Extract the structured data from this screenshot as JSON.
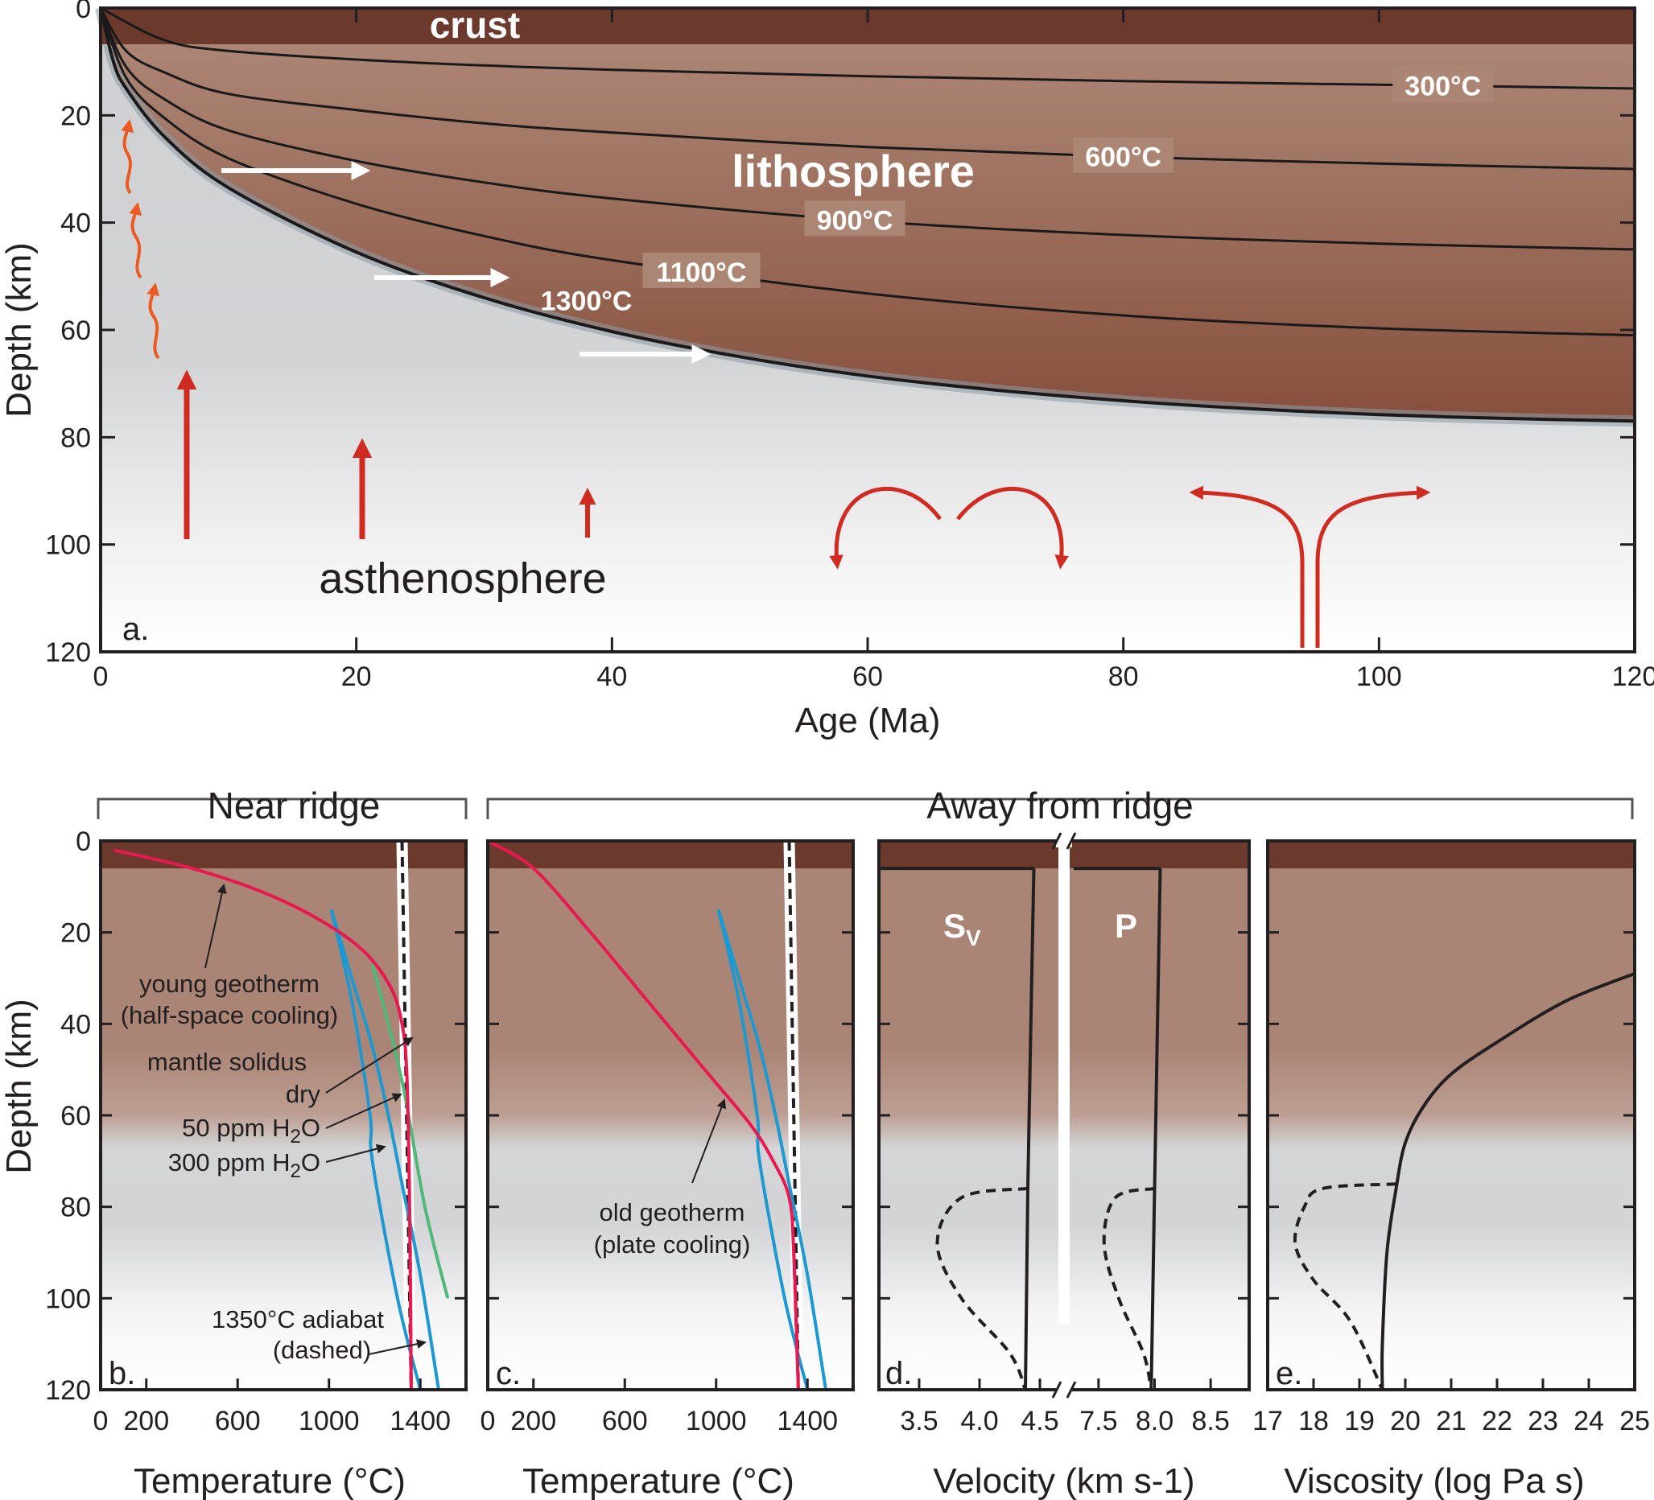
{
  "chart_data": [
    {
      "panel": "a",
      "type": "line",
      "xlabel": "Age (Ma)",
      "ylabel": "Depth (km)",
      "xlim": [
        0,
        120
      ],
      "ylim": [
        120,
        0
      ],
      "xticks": [
        "0",
        "20",
        "40",
        "60",
        "80",
        "100",
        "120"
      ],
      "yticks": [
        "0",
        "20",
        "40",
        "60",
        "80",
        "100",
        "120"
      ],
      "regions": {
        "crust": "crust",
        "lithosphere": "lithosphere",
        "asthenosphere": "asthenosphere"
      },
      "crust_base_km": 6,
      "isotherms": [
        {
          "label": "300°C",
          "plate_depth": 15,
          "points": [
            [
              0,
              0
            ],
            [
              5,
              6
            ],
            [
              10,
              8
            ],
            [
              20,
              9.6
            ],
            [
              30,
              10.7
            ],
            [
              40,
              11.5
            ],
            [
              60,
              12.7
            ],
            [
              80,
              13.6
            ],
            [
              100,
              14.3
            ],
            [
              120,
              15
            ]
          ]
        },
        {
          "label": "600°C",
          "plate_depth": 30,
          "points": [
            [
              0,
              0
            ],
            [
              2,
              8
            ],
            [
              5,
              12
            ],
            [
              10,
              16
            ],
            [
              20,
              19
            ],
            [
              30,
              21.5
            ],
            [
              40,
              23.2
            ],
            [
              60,
              25.9
            ],
            [
              80,
              27.7
            ],
            [
              100,
              29
            ],
            [
              120,
              30
            ]
          ]
        },
        {
          "label": "900°C",
          "plate_depth": 45,
          "points": [
            [
              0,
              0
            ],
            [
              2,
              11
            ],
            [
              5,
              17
            ],
            [
              10,
              22.8
            ],
            [
              20,
              28.5
            ],
            [
              30,
              32.5
            ],
            [
              40,
              35.5
            ],
            [
              60,
              39.7
            ],
            [
              80,
              42.3
            ],
            [
              100,
              43.9
            ],
            [
              120,
              45
            ]
          ]
        },
        {
          "label": "1100°C",
          "plate_depth": 61,
          "points": [
            [
              0,
              0
            ],
            [
              2,
              13
            ],
            [
              5,
              20.5
            ],
            [
              10,
              28
            ],
            [
              20,
              36.5
            ],
            [
              30,
              42.5
            ],
            [
              40,
              47
            ],
            [
              60,
              53.2
            ],
            [
              80,
              57.3
            ],
            [
              100,
              59.7
            ],
            [
              120,
              61
            ]
          ]
        },
        {
          "label": "1300°C",
          "plate_depth": 77,
          "points": [
            [
              0,
              0
            ],
            [
              1,
              10
            ],
            [
              2,
              15
            ],
            [
              5,
              24
            ],
            [
              10,
              33.5
            ],
            [
              20,
              45.5
            ],
            [
              30,
              54
            ],
            [
              40,
              60.3
            ],
            [
              50,
              65
            ],
            [
              60,
              68.6
            ],
            [
              70,
              71.2
            ],
            [
              80,
              73.2
            ],
            [
              90,
              74.7
            ],
            [
              100,
              75.8
            ],
            [
              110,
              76.5
            ],
            [
              120,
              77
            ]
          ]
        }
      ],
      "arrows": [
        "plate motion",
        "upwelling",
        "small-scale convection",
        "downwelling"
      ],
      "panel_label": "a."
    },
    {
      "panel": "b",
      "type": "line",
      "header": "Near ridge",
      "xlabel": "Temperature (°C)",
      "ylabel": "Depth (km)",
      "xlim": [
        0,
        1600
      ],
      "ylim": [
        120,
        0
      ],
      "xticks": [
        "0",
        "200",
        "600",
        "1000",
        "1400"
      ],
      "yticks": [
        "0",
        "20",
        "40",
        "60",
        "80",
        "100",
        "120"
      ],
      "series": [
        {
          "name": "young geotherm (half-space cooling)",
          "color": "#e8194f",
          "points": [
            [
              60,
              2
            ],
            [
              400,
              6
            ],
            [
              700,
              11
            ],
            [
              950,
              17
            ],
            [
              1150,
              24
            ],
            [
              1270,
              32
            ],
            [
              1320,
              40
            ],
            [
              1340,
              50
            ],
            [
              1350,
              70
            ],
            [
              1355,
              90
            ],
            [
              1360,
              120
            ]
          ]
        },
        {
          "name": "dry",
          "color": "#4fb87a",
          "points": [
            [
              1190,
              27
            ],
            [
              1260,
              40
            ],
            [
              1330,
              55
            ],
            [
              1420,
              80
            ],
            [
              1520,
              100
            ]
          ]
        },
        {
          "name": "50 ppm H2O",
          "color": "#1e98d0",
          "points": [
            [
              1010,
              15
            ],
            [
              1100,
              30
            ],
            [
              1190,
              45
            ],
            [
              1260,
              60
            ],
            [
              1320,
              75
            ],
            [
              1400,
              95
            ],
            [
              1480,
              120
            ]
          ]
        },
        {
          "name": "300 ppm H2O",
          "color": "#1e98d0",
          "points": [
            [
              1010,
              15
            ],
            [
              1100,
              35
            ],
            [
              1180,
              60
            ],
            [
              1190,
              70
            ],
            [
              1300,
              100
            ],
            [
              1400,
              120
            ]
          ]
        },
        {
          "name": "1350°C adiabat (dashed)",
          "color": "#231f20",
          "points": [
            [
              1320,
              0
            ],
            [
              1360,
              120
            ]
          ]
        }
      ],
      "annotations": [
        "young geotherm",
        "(half-space cooling)",
        "mantle solidus",
        "dry",
        "50 ppm H",
        "2",
        "O",
        "300 ppm H",
        "2",
        "O",
        "1350°C adiabat",
        "(dashed)"
      ],
      "panel_label": "b."
    },
    {
      "panel": "c",
      "type": "line",
      "header": "Away from ridge",
      "xlabel": "Temperature (°C)",
      "ylabel": "Depth (km)",
      "xlim": [
        0,
        1600
      ],
      "ylim": [
        120,
        0
      ],
      "xticks": [
        "0",
        "200",
        "600",
        "1000",
        "1400"
      ],
      "series": [
        {
          "name": "old geotherm (plate cooling)",
          "color": "#e8194f",
          "points": [
            [
              0,
              0
            ],
            [
              200,
              6
            ],
            [
              450,
              20
            ],
            [
              700,
              35
            ],
            [
              950,
              50
            ],
            [
              1150,
              62
            ],
            [
              1250,
              70
            ],
            [
              1320,
              78
            ],
            [
              1340,
              90
            ],
            [
              1360,
              120
            ]
          ]
        },
        {
          "name": "50 ppm H2O",
          "color": "#1e98d0",
          "points": [
            [
              1010,
              15
            ],
            [
              1100,
              30
            ],
            [
              1190,
              45
            ],
            [
              1260,
              60
            ],
            [
              1320,
              75
            ],
            [
              1400,
              95
            ],
            [
              1480,
              120
            ]
          ]
        },
        {
          "name": "300 ppm H2O",
          "color": "#1e98d0",
          "points": [
            [
              1010,
              15
            ],
            [
              1100,
              35
            ],
            [
              1180,
              60
            ],
            [
              1190,
              70
            ],
            [
              1300,
              100
            ],
            [
              1400,
              120
            ]
          ]
        },
        {
          "name": "1350°C adiabat",
          "color": "#231f20",
          "points": [
            [
              1320,
              0
            ],
            [
              1360,
              120
            ]
          ]
        }
      ],
      "annotations": [
        "old geotherm",
        "(plate cooling)"
      ],
      "panel_label": "c."
    },
    {
      "panel": "d",
      "type": "line",
      "xlabel": "Velocity (km s-1)",
      "xticks_sv": [
        "3.5",
        "4.0",
        "4.5"
      ],
      "xticks_p": [
        "7.5",
        "8.0",
        "8.5"
      ],
      "series_labels": {
        "sv": "S",
        "sv_sub": "V",
        "p": "P"
      },
      "series": [
        {
          "name": "Sv",
          "style": "solid",
          "points": [
            [
              4.45,
              6
            ],
            [
              4.4,
              76
            ],
            [
              4.38,
              120
            ]
          ]
        },
        {
          "name": "Sv",
          "style": "dashed",
          "points": [
            [
              4.4,
              76
            ],
            [
              3.85,
              78
            ],
            [
              3.65,
              88
            ],
            [
              3.85,
              100
            ],
            [
              4.25,
              112
            ],
            [
              4.38,
              120
            ]
          ]
        },
        {
          "name": "P",
          "style": "solid",
          "points": [
            [
              8.05,
              6
            ],
            [
              8.0,
              76
            ],
            [
              7.97,
              120
            ]
          ]
        },
        {
          "name": "P",
          "style": "dashed",
          "points": [
            [
              8.0,
              76
            ],
            [
              7.65,
              78
            ],
            [
              7.55,
              88
            ],
            [
              7.68,
              100
            ],
            [
              7.9,
              112
            ],
            [
              7.97,
              120
            ]
          ]
        }
      ],
      "panel_label": "d."
    },
    {
      "panel": "e",
      "type": "line",
      "xlabel": "Viscosity (log Pa s)",
      "xlim": [
        17,
        25
      ],
      "xticks": [
        "17",
        "18",
        "19",
        "20",
        "21",
        "22",
        "23",
        "24",
        "25"
      ],
      "series": [
        {
          "name": "viscosity",
          "style": "solid",
          "points": [
            [
              25,
              29
            ],
            [
              23.5,
              35
            ],
            [
              22,
              44
            ],
            [
              21,
              51
            ],
            [
              20.4,
              58
            ],
            [
              20,
              66
            ],
            [
              19.8,
              76
            ],
            [
              19.6,
              90
            ],
            [
              19.5,
              110
            ],
            [
              19.5,
              120
            ]
          ]
        },
        {
          "name": "viscosity",
          "style": "dashed",
          "points": [
            [
              19.8,
              75
            ],
            [
              18.2,
              76
            ],
            [
              17.8,
              80
            ],
            [
              17.6,
              88
            ],
            [
              18.0,
              96
            ],
            [
              18.8,
              105
            ],
            [
              19.5,
              120
            ]
          ]
        }
      ],
      "panel_label": "e."
    }
  ]
}
